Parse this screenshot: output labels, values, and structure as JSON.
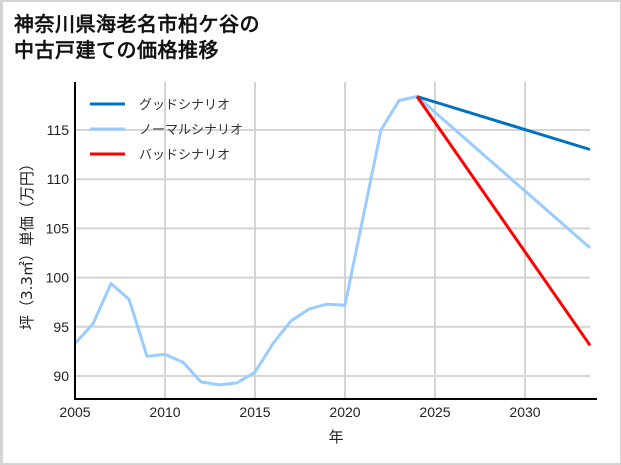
{
  "title": "神奈川県海老名市柏ケ谷の\n中古戸建ての価格推移",
  "chart_data": {
    "type": "line",
    "title": "神奈川県海老名市柏ケ谷の中古戸建ての価格推移",
    "xlabel": "年",
    "ylabel": "坪（3.3㎡）単価（万円）",
    "xlim": [
      2005,
      2034
    ],
    "ylim": [
      87.5,
      119.5
    ],
    "xticks": [
      2005,
      2010,
      2015,
      2020,
      2025,
      2030
    ],
    "yticks": [
      90,
      95,
      100,
      105,
      110,
      115
    ],
    "grid": true,
    "legend_position": "upper left",
    "series": [
      {
        "name": "グッドシナリオ",
        "color": "#0070c0",
        "x": [
          2024,
          2034
        ],
        "values": [
          118.4,
          112.8
        ]
      },
      {
        "name": "ノーマルシナリオ",
        "color": "#99ccff",
        "x": [
          2005,
          2006,
          2007,
          2008,
          2009,
          2010,
          2011,
          2012,
          2013,
          2014,
          2015,
          2016,
          2017,
          2018,
          2019,
          2020,
          2021,
          2022,
          2023,
          2024,
          2034
        ],
        "values": [
          93.3,
          95.3,
          99.4,
          97.8,
          92.0,
          92.2,
          91.4,
          89.4,
          89.1,
          89.3,
          90.4,
          93.3,
          95.6,
          96.8,
          97.3,
          97.2,
          106.1,
          115.0,
          118.0,
          118.4,
          102.4
        ]
      },
      {
        "name": "バッドシナリオ",
        "color": "#ff0000",
        "x": [
          2024,
          2034
        ],
        "values": [
          118.4,
          92.1
        ]
      }
    ]
  },
  "legend": {
    "items": [
      {
        "label": "グッドシナリオ",
        "color": "#0070c0"
      },
      {
        "label": "ノーマルシナリオ",
        "color": "#99ccff"
      },
      {
        "label": "バッドシナリオ",
        "color": "#ff0000"
      }
    ]
  }
}
